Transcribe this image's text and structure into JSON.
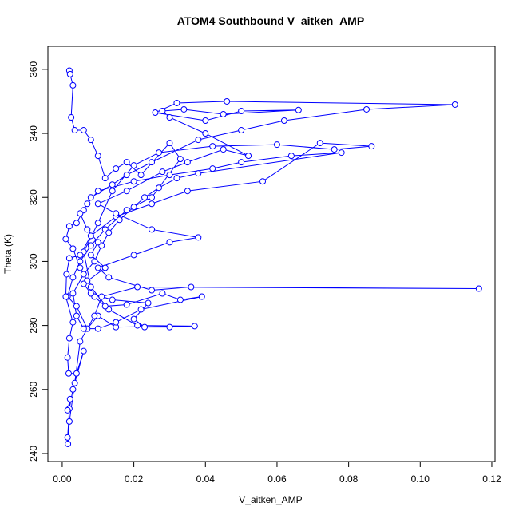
{
  "chart_data": {
    "type": "line",
    "title": "ATOM4 Southbound V_aitken_AMP",
    "xlabel": "V_aitken_AMP",
    "ylabel": "Theta (K)",
    "color": "#0000ff",
    "marker": "circle",
    "xlim": [
      -0.004,
      0.1209
    ],
    "ylim": [
      237.5,
      367.2
    ],
    "xticks": [
      {
        "value": 0,
        "label": "0.00"
      },
      {
        "value": 0.02,
        "label": "0.02"
      },
      {
        "value": 0.04,
        "label": "0.04"
      },
      {
        "value": 0.06,
        "label": "0.06"
      },
      {
        "value": 0.08,
        "label": "0.08"
      },
      {
        "value": 0.1,
        "label": "0.10"
      },
      {
        "value": 0.12,
        "label": "0.12"
      }
    ],
    "yticks": [
      240,
      260,
      280,
      300,
      320,
      340,
      360
    ],
    "x": [
      0.002,
      0.0022,
      0.003,
      0.0025,
      0.0035,
      0.006,
      0.008,
      0.01,
      0.012,
      0.015,
      0.018,
      0.022,
      0.03,
      0.033,
      0.025,
      0.018,
      0.012,
      0.008,
      0.005,
      0.003,
      0.0015,
      0.004,
      0.007,
      0.01,
      0.015,
      0.037,
      0.021,
      0.013,
      0.008,
      0.006,
      0.01,
      0.014,
      0.02,
      0.027,
      0.042,
      0.06,
      0.076,
      0.0864,
      0.072,
      0.056,
      0.035,
      0.025,
      0.015,
      0.008,
      0.005,
      0.002,
      0.0012,
      0.001,
      0.003,
      0.002,
      0.0015,
      0.0018,
      0.004,
      0.006,
      0.003,
      0.002,
      0.0015,
      0.0022,
      0.0015,
      0.0016,
      0.002,
      0.0035,
      0.005,
      0.009,
      0.011,
      0.021,
      0.1164,
      0.036,
      0.025,
      0.013,
      0.01,
      0.02,
      0.03,
      0.038,
      0.025,
      0.015,
      0.01,
      0.018,
      0.028,
      0.035,
      0.045,
      0.052,
      0.04,
      0.03,
      0.028,
      0.034,
      0.045,
      0.066,
      0.05,
      0.04,
      0.026,
      0.032,
      0.046,
      0.1097,
      0.085,
      0.062,
      0.05,
      0.038,
      0.025,
      0.018,
      0.014,
      0.008,
      0.006,
      0.004,
      0.002,
      0.001,
      0.003,
      0.005,
      0.007,
      0.009,
      0.012,
      0.018,
      0.028,
      0.033,
      0.039,
      0.022,
      0.015,
      0.01,
      0.006,
      0.004,
      0.003,
      0.006,
      0.009,
      0.011,
      0.013,
      0.016,
      0.02,
      0.023,
      0.027,
      0.032,
      0.038,
      0.078,
      0.064,
      0.05,
      0.042,
      0.03,
      0.02,
      0.01,
      0.007,
      0.005,
      0.007,
      0.01,
      0.008,
      0.012,
      0.006,
      0.008,
      0.014,
      0.024,
      0.02,
      0.023,
      0.03
    ],
    "values": [
      359.6,
      358.5,
      355,
      345,
      341,
      341,
      338,
      333,
      326,
      329,
      331,
      327,
      337,
      332,
      320,
      316,
      310,
      305,
      300,
      295,
      289,
      286,
      279,
      283,
      279.5,
      279.8,
      280,
      285,
      292,
      303,
      312,
      322,
      330,
      334,
      336,
      336.5,
      335,
      336,
      337,
      325,
      322,
      318,
      314,
      308,
      302,
      301,
      296,
      289,
      281,
      276,
      270,
      265,
      265,
      272,
      260,
      254,
      253.5,
      257,
      245,
      243,
      250,
      262,
      275,
      283,
      289,
      292,
      291.5,
      292,
      291,
      295,
      298,
      302,
      306,
      307.5,
      310,
      315,
      318,
      322,
      328,
      331,
      335,
      333,
      340,
      345,
      347,
      347.5,
      346,
      347.3,
      347,
      344,
      346.5,
      349.5,
      350,
      349,
      347.5,
      344,
      341,
      338,
      331,
      327,
      324,
      320,
      316,
      312,
      311,
      307,
      304,
      298,
      294,
      289,
      286,
      286.5,
      290,
      288,
      289,
      285,
      281,
      279,
      279,
      283,
      290,
      296,
      300,
      305,
      309,
      313,
      317,
      320,
      323,
      326,
      327.5,
      334,
      333,
      331,
      329,
      327,
      325,
      322,
      318,
      315,
      310,
      306,
      302,
      298,
      293,
      290,
      288,
      287,
      282,
      279.5,
      279.5
    ]
  }
}
